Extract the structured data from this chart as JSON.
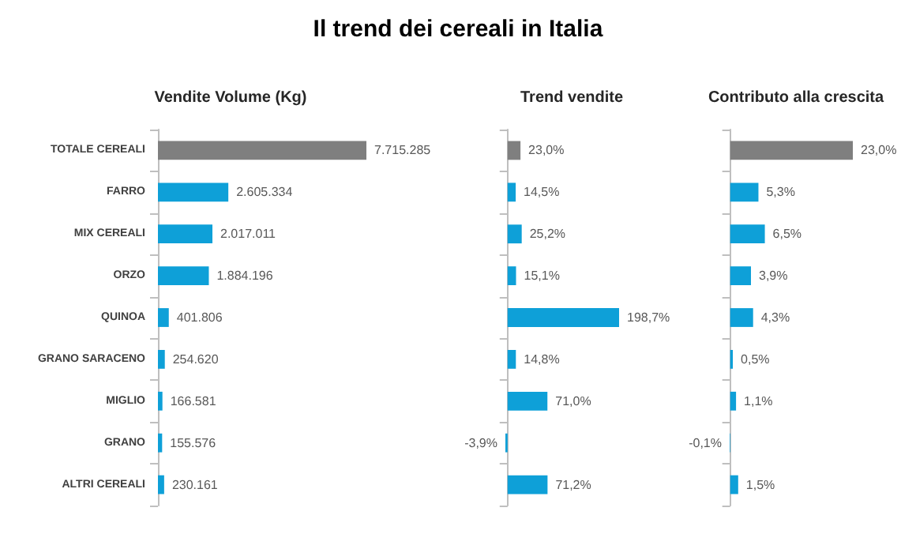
{
  "chart_data": [
    {
      "type": "bar",
      "orientation": "horizontal",
      "title": "Il trend dei cereali in Italia",
      "subtitle": "Vendite Volume (Kg)",
      "tick_labels": "y",
      "categories": [
        "TOTALE CEREALI",
        "FARRO",
        "MIX CEREALI",
        "ORZO",
        "QUINOA",
        "GRANO SARACENO",
        "MIGLIO",
        "GRANO",
        "ALTRI CEREALI"
      ],
      "values": [
        7715285,
        2605334,
        2017011,
        1884196,
        401806,
        254620,
        166581,
        155576,
        230161
      ],
      "value_labels": [
        "7.715.285",
        "2.605.334",
        "2.017.011",
        "1.884.196",
        "401.806",
        "254.620",
        "166.581",
        "155.576",
        "230.161"
      ],
      "colors": [
        "#7f7f7f",
        "#0ea0d8",
        "#0ea0d8",
        "#0ea0d8",
        "#0ea0d8",
        "#0ea0d8",
        "#0ea0d8",
        "#0ea0d8",
        "#0ea0d8"
      ]
    },
    {
      "type": "bar",
      "orientation": "horizontal",
      "title": "Trend vendite",
      "tick_labels": false,
      "categories": [
        null,
        null,
        null,
        null,
        null,
        null,
        null,
        null,
        null
      ],
      "values": [
        23.0,
        14.5,
        25.2,
        15.1,
        198.7,
        14.8,
        71.0,
        -3.9,
        71.2
      ],
      "value_labels": [
        "23,0%",
        "14,5%",
        "25,2%",
        "15,1%",
        "198,7%",
        "14,8%",
        "71,0%",
        "-3,9%",
        "71,2%"
      ],
      "colors": [
        "#7f7f7f",
        "#0ea0d8",
        "#0ea0d8",
        "#0ea0d8",
        "#0ea0d8",
        "#0ea0d8",
        "#0ea0d8",
        "#0ea0d8",
        "#0ea0d8"
      ]
    },
    {
      "type": "bar",
      "orientation": "horizontal",
      "title": "Contributo alla crescita",
      "tick_labels": false,
      "categories": [
        null,
        null,
        null,
        null,
        null,
        null,
        null,
        null,
        null
      ],
      "values": [
        23.0,
        5.3,
        6.5,
        3.9,
        4.3,
        0.5,
        1.1,
        -0.1,
        1.5
      ],
      "value_labels": [
        "23,0%",
        "5,3%",
        "6,5%",
        "3,9%",
        "4,3%",
        "0,5%",
        "1,1%",
        "-0,1%",
        "1,5%"
      ],
      "colors": [
        "#7f7f7f",
        "#0ea0d8",
        "#0ea0d8",
        "#0ea0d8",
        "#0ea0d8",
        "#0ea0d8",
        "#0ea0d8",
        "#0ea0d8",
        "#0ea0d8"
      ]
    }
  ]
}
